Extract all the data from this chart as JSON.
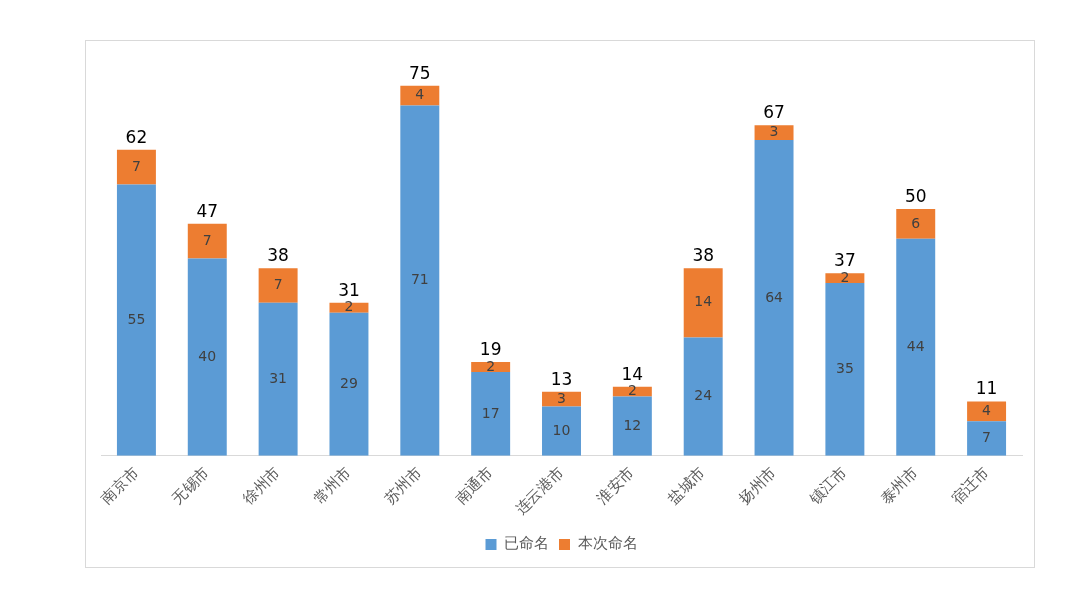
{
  "chart_data": {
    "type": "bar",
    "stacked": true,
    "legend": "bottom",
    "data_labels": true,
    "categories": [
      "南京市",
      "无锡市",
      "徐州市",
      "常州市",
      "苏州市",
      "南通市",
      "连云港市",
      "淮安市",
      "盐城市",
      "扬州市",
      "镇江市",
      "泰州市",
      "宿迁市"
    ],
    "series": [
      {
        "name": "已命名",
        "color": "#5b9bd5",
        "values": [
          55,
          40,
          31,
          29,
          71,
          17,
          10,
          12,
          24,
          64,
          35,
          44,
          7
        ]
      },
      {
        "name": "本次命名",
        "color": "#ed7d31",
        "values": [
          7,
          7,
          7,
          2,
          4,
          2,
          3,
          2,
          14,
          3,
          2,
          6,
          4
        ]
      }
    ],
    "totals": [
      "62",
      "47",
      "38",
      "31",
      "75",
      "19",
      "13",
      "14",
      "38",
      "67",
      "37",
      "50",
      "11"
    ]
  }
}
